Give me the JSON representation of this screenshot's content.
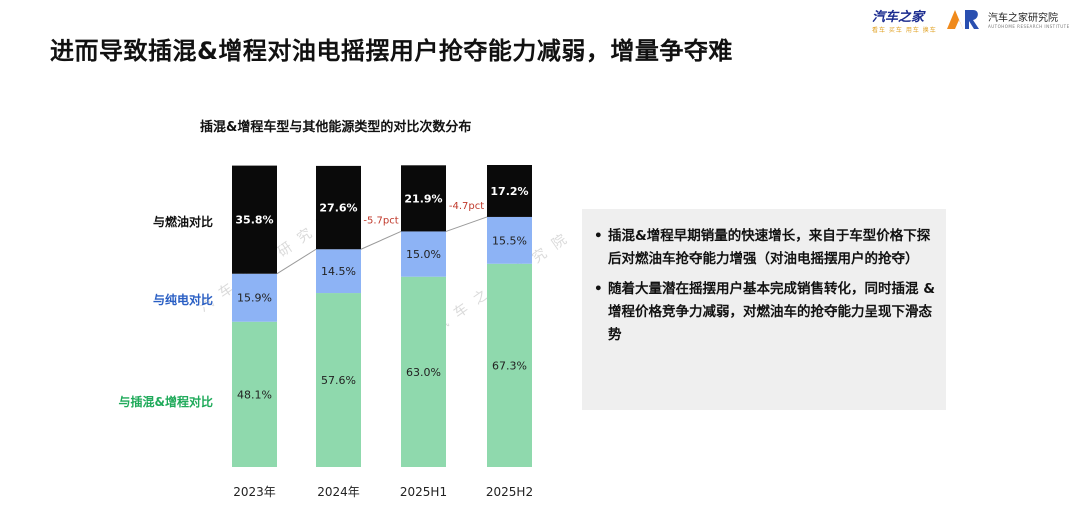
{
  "header": {
    "title": "进而导致插混&增程对油电摇摆用户抢夺能力减弱，增量争夺难",
    "brand_autohome": "汽车之家",
    "brand_autohome_sub": "看车 买车 用车 换车",
    "brand_research": "汽车之家研究院",
    "brand_research_sub": "AUTOHOME RESEARCH INSTITUTE"
  },
  "watermarks": [
    "汽车之家研究院",
    "汽车之家研究院"
  ],
  "chart_data": {
    "type": "bar",
    "stacked": true,
    "title": "插混&增程车型与其他能源类型的对比次数分布",
    "categories": [
      "2023年",
      "2024年",
      "2025H1",
      "2025H2"
    ],
    "series": [
      {
        "name": "与插混&增程对比",
        "color": "#8fd9ad",
        "values": [
          48.1,
          57.6,
          63.0,
          67.3
        ],
        "labels": [
          "48.1%",
          "57.6%",
          "63.0%",
          "67.3%"
        ]
      },
      {
        "name": "与纯电对比",
        "color": "#8db3f5",
        "values": [
          15.9,
          14.5,
          15.0,
          15.5
        ],
        "labels": [
          "15.9%",
          "14.5%",
          "15.0%",
          "15.5%"
        ]
      },
      {
        "name": "与燃油对比",
        "color": "#0a0a0a",
        "values": [
          35.8,
          27.6,
          21.9,
          17.2
        ],
        "labels": [
          "35.8%",
          "27.6%",
          "21.9%",
          "17.2%"
        ]
      }
    ],
    "label_colors": {
      "与插混&增程对比": "#1faa5a",
      "与纯电对比": "#2a5fc4",
      "与燃油对比": "#111111"
    },
    "annotations": [
      {
        "between": [
          "2024年",
          "2025H1"
        ],
        "text": "-5.7pct",
        "color": "#c0392b"
      },
      {
        "between": [
          "2025H1",
          "2025H2"
        ],
        "text": "-4.7pct",
        "color": "#c0392b"
      }
    ],
    "ylim": [
      0,
      100
    ]
  },
  "insights": [
    "插混&增程早期销量的快速增长，来自于车型价格下探后对燃油车抢夺能力增强（对油电摇摆用户的抢夺）",
    "随着大量潜在摇摆用户基本完成销售转化，同时插混 & 增程价格竞争力减弱，对燃油车的抢夺能力呈现下滑态势"
  ]
}
